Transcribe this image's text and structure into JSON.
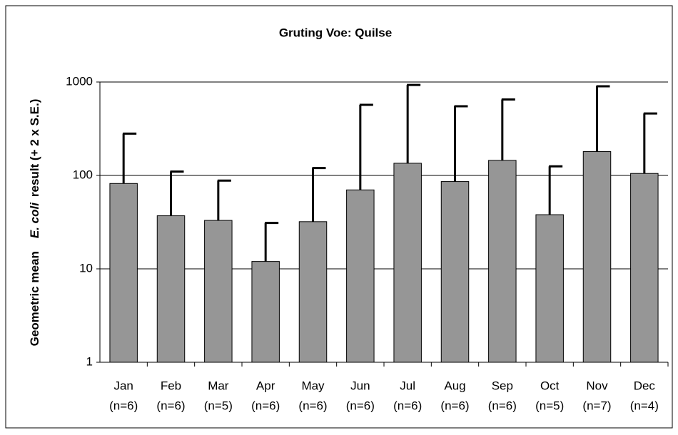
{
  "chart_data": {
    "type": "bar",
    "title": "Gruting Voe: Quilse",
    "ylabel": [
      "Geometric mean",
      "E. coli",
      "result (+ 2 x S.E.)"
    ],
    "categories": [
      "Jan",
      "Feb",
      "Mar",
      "Apr",
      "May",
      "Jun",
      "Jul",
      "Aug",
      "Sep",
      "Oct",
      "Nov",
      "Dec"
    ],
    "category_sublabels": [
      "(n=6)",
      "(n=6)",
      "(n=5)",
      "(n=6)",
      "(n=6)",
      "(n=6)",
      "(n=6)",
      "(n=6)",
      "(n=6)",
      "(n=5)",
      "(n=7)",
      "(n=4)"
    ],
    "values": [
      82,
      37,
      33,
      12,
      32,
      70,
      135,
      86,
      145,
      38,
      180,
      105
    ],
    "errors": [
      198,
      73,
      55,
      19,
      88,
      500,
      795,
      464,
      505,
      87,
      720,
      355
    ],
    "color": "#969696",
    "log_y": true,
    "grid": true,
    "ylim": [
      1,
      1000
    ],
    "yticks": [
      1,
      10,
      100,
      1000
    ]
  }
}
